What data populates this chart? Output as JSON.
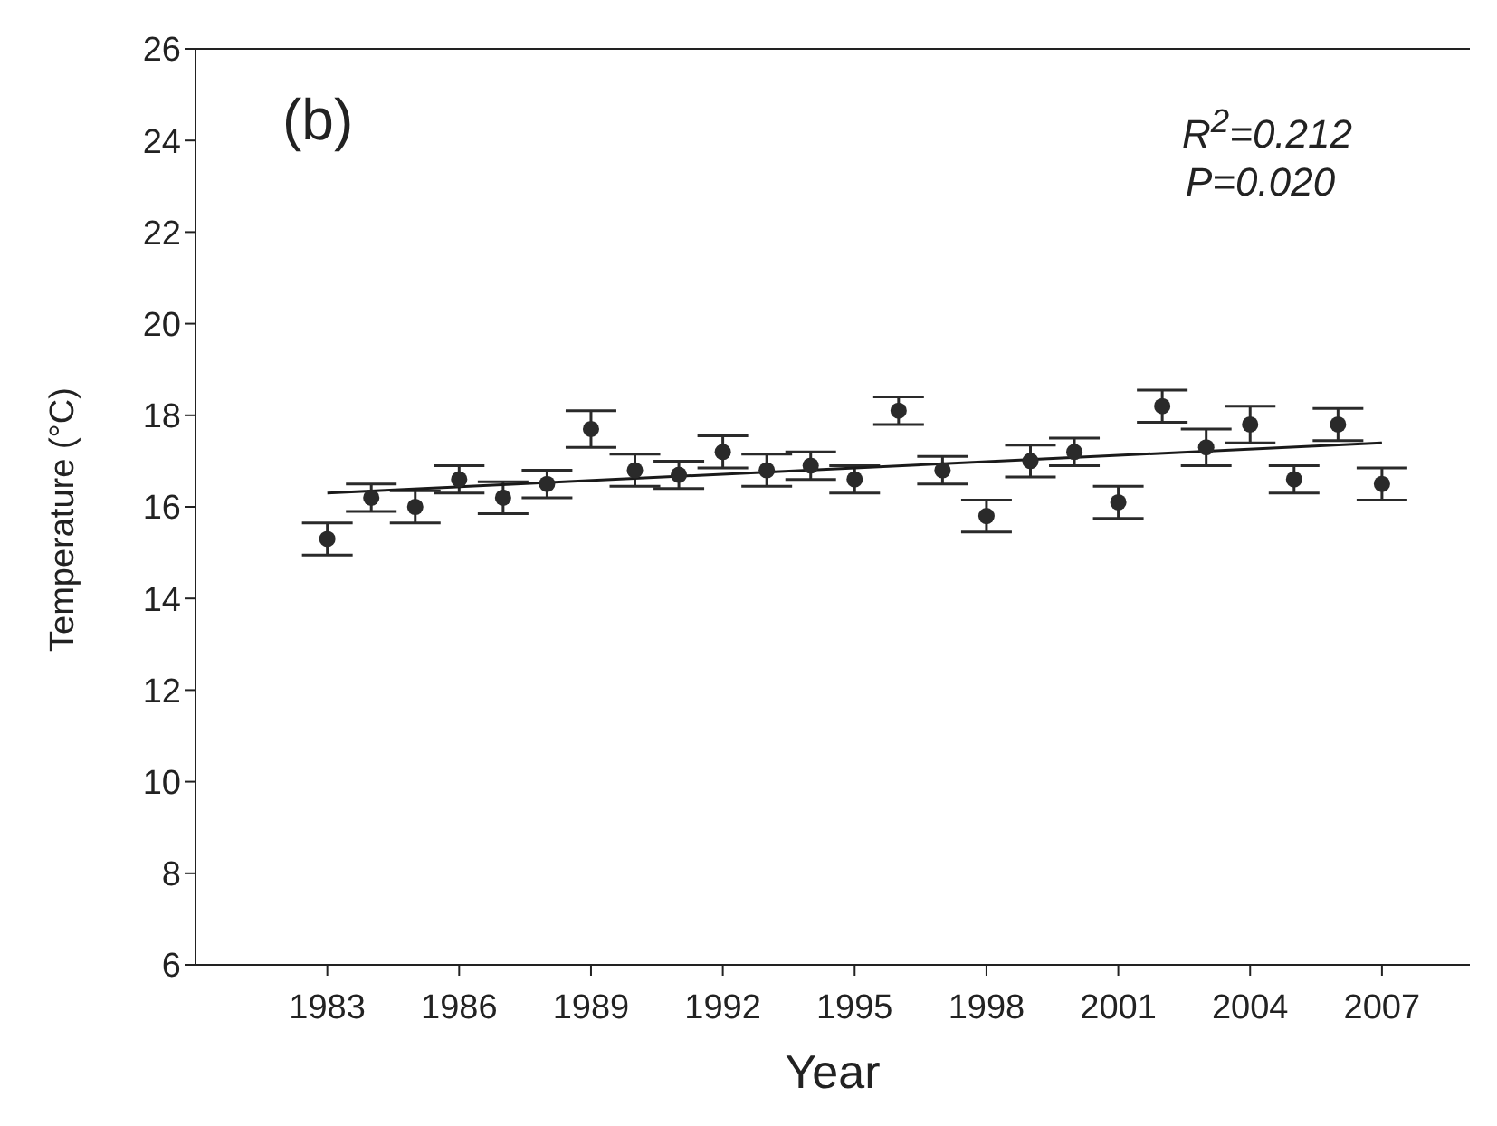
{
  "chart_data": {
    "type": "scatter",
    "xlabel": "Year",
    "ylabel": "Temperature (°C)",
    "annotations": [
      "(b)",
      "R$^{2}$=0.212",
      "P=0.020"
    ],
    "x": [
      1983,
      1984,
      1985,
      1986,
      1987,
      1988,
      1989,
      1990,
      1991,
      1992,
      1993,
      1994,
      1995,
      1996,
      1997,
      1998,
      1999,
      2000,
      2001,
      2002,
      2003,
      2004,
      2005,
      2006,
      2007
    ],
    "series": [
      {
        "marker": "circle",
        "color": "#2a2a2a",
        "values": [
          15.3,
          16.2,
          16.0,
          16.6,
          16.2,
          16.5,
          17.7,
          16.8,
          16.7,
          17.2,
          16.8,
          16.9,
          16.6,
          18.1,
          16.8,
          15.8,
          17.0,
          17.2,
          16.1,
          18.2,
          17.3,
          17.8,
          16.6,
          17.8,
          16.5
        ],
        "errors": [
          0.35,
          0.3,
          0.35,
          0.3,
          0.35,
          0.3,
          0.4,
          0.35,
          0.3,
          0.35,
          0.35,
          0.3,
          0.3,
          0.3,
          0.3,
          0.35,
          0.35,
          0.3,
          0.35,
          0.35,
          0.4,
          0.4,
          0.3,
          0.35,
          0.35
        ]
      },
      {
        "type": "line",
        "color": "#1a1a1a",
        "x": [
          1983,
          2007
        ],
        "values": [
          16.3,
          17.4
        ]
      }
    ],
    "xlim": [
      1980,
      2009
    ],
    "xticks": [
      1983,
      1986,
      1989,
      1992,
      1995,
      1998,
      2001,
      2004,
      2007
    ],
    "ylim": [
      6,
      26
    ],
    "yticks": [
      6,
      8,
      10,
      12,
      14,
      16,
      18,
      20,
      22,
      24,
      26
    ],
    "line_style": "solid"
  }
}
